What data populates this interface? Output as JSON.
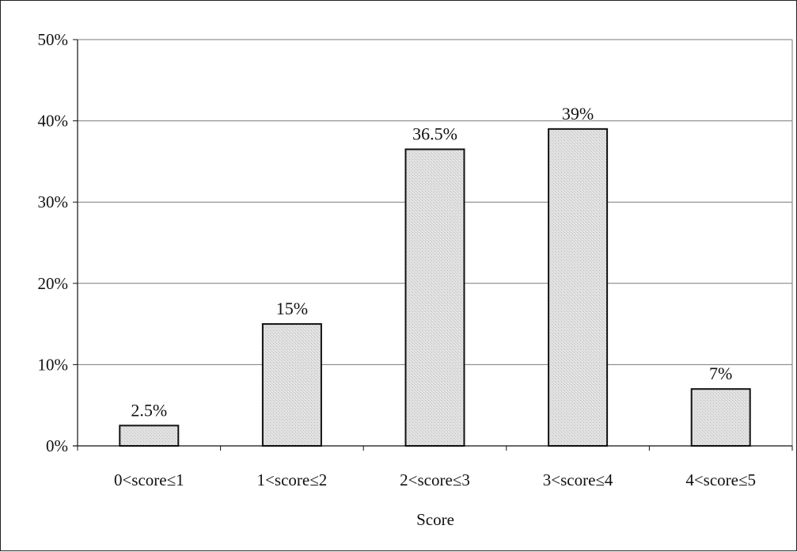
{
  "chart_data": {
    "type": "bar",
    "categories": [
      "0<score≤1",
      "1<score≤2",
      "2<score≤3",
      "3<score≤4",
      "4<score≤5"
    ],
    "values": [
      2.5,
      15,
      36.5,
      39,
      7
    ],
    "value_labels": [
      "2.5%",
      "15%",
      "36.5%",
      "39%",
      "7%"
    ],
    "xlabel": "Score",
    "ylabel": "",
    "ylim": [
      0,
      50
    ],
    "yticks": [
      0,
      10,
      20,
      30,
      40,
      50
    ],
    "ytick_labels": [
      "0%",
      "10%",
      "20%",
      "30%",
      "40%",
      "50%"
    ],
    "grid": true,
    "colors": {
      "bar_fill": "#d9d9d9",
      "bar_stroke": "#111111",
      "grid": "#7a7a7a",
      "axis": "#111111"
    }
  }
}
